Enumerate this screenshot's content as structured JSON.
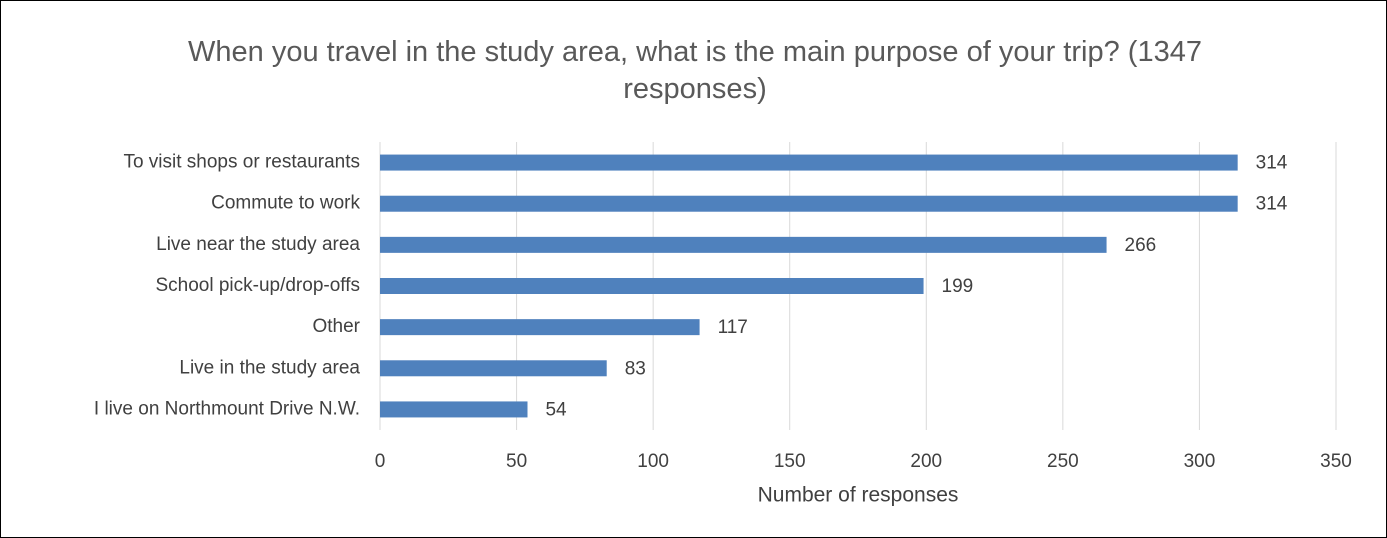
{
  "chart_data": {
    "type": "bar",
    "orientation": "horizontal",
    "title": "When you travel in the study area, what is the main purpose of your trip? (1347 responses)",
    "categories": [
      "To visit shops or restaurants",
      "Commute to work",
      "Live near the study area",
      "School pick-up/drop-offs",
      "Other",
      "Live in the study area",
      "I live on Northmount Drive N.W."
    ],
    "values": [
      314,
      314,
      266,
      199,
      117,
      83,
      54
    ],
    "color": "#4f81bd",
    "xlabel": "Number of responses",
    "xlim": [
      0,
      350
    ],
    "xticks": [
      0,
      50,
      100,
      150,
      200,
      250,
      300,
      350
    ],
    "grid": true
  }
}
